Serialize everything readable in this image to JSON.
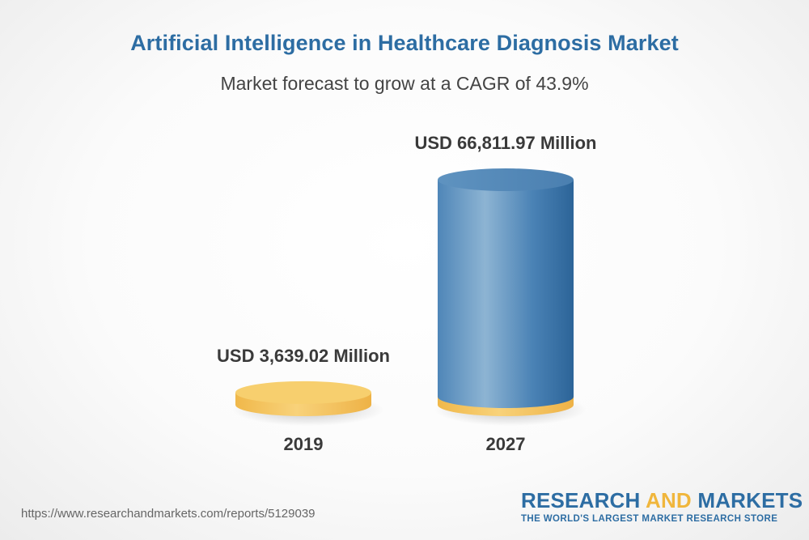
{
  "title": "Artificial Intelligence in Healthcare Diagnosis Market",
  "subtitle": "Market forecast to grow at a CAGR of 43.9%",
  "chart_data": {
    "type": "bar",
    "categories": [
      "2019",
      "2027"
    ],
    "values": [
      3639.02,
      66811.97
    ],
    "value_labels": [
      "USD 3,639.02 Million",
      "USD 66,811.97 Million"
    ],
    "xlabel": "",
    "ylabel": "",
    "grid": false,
    "colors": {
      "2019": "#f5c660",
      "2027": "#4d86b8",
      "base": "#f2bc4c"
    }
  },
  "source_url": "https://www.researchandmarkets.com/reports/5129039",
  "brand": {
    "name_part1": "RESEARCH ",
    "name_part2": "AND",
    "name_part3": " MARKETS",
    "tagline": "THE WORLD'S LARGEST MARKET RESEARCH STORE"
  }
}
